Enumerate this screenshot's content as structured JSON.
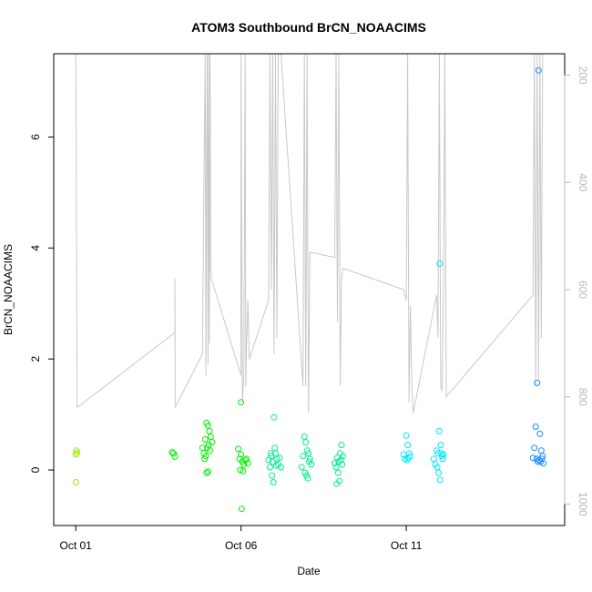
{
  "chart_data": {
    "type": "scatter",
    "title": "ATOM3 Southbound BrCN_NOAACIMS",
    "xlabel": "Date",
    "ylabel": "BrCN_NOAACIMS",
    "xlim": [
      "2017-09-30T08:00",
      "2017-10-15T19:00"
    ],
    "ylim": [
      -1.0,
      7.5
    ],
    "x_ticks": [
      {
        "value": "2017-10-01",
        "label": "Oct 01"
      },
      {
        "value": "2017-10-06",
        "label": "Oct 06"
      },
      {
        "value": "2017-10-11",
        "label": "Oct 11"
      }
    ],
    "y_ticks": [
      0,
      2,
      4,
      6
    ],
    "y2_ticks": [
      200,
      400,
      600,
      800,
      1000
    ],
    "y2_range_reversed": [
      160,
      1040
    ],
    "grid": false,
    "legend": "none",
    "point_colors": [
      "#9ee800",
      "#00ee00",
      "#00ee8a",
      "#00e6ff",
      "#1a8cff"
    ],
    "series": [
      {
        "type": "scatter",
        "points": [
          [
            "2017-10-01T00:00",
            0.28
          ],
          [
            "2017-10-01T00:30",
            0.35
          ],
          [
            "2017-10-01T01:00",
            0.31
          ],
          [
            "2017-10-01T00:10",
            -0.22
          ],
          [
            "2017-10-03T22:00",
            0.32
          ],
          [
            "2017-10-03T23:00",
            0.3
          ],
          [
            "2017-10-04T00:00",
            0.24
          ],
          [
            "2017-10-04T20:00",
            0.4
          ],
          [
            "2017-10-04T21:00",
            0.3
          ],
          [
            "2017-10-04T22:00",
            0.55
          ],
          [
            "2017-10-04T23:00",
            0.85
          ],
          [
            "2017-10-05T00:00",
            0.8
          ],
          [
            "2017-10-05T01:00",
            0.7
          ],
          [
            "2017-10-05T02:00",
            0.6
          ],
          [
            "2017-10-05T03:00",
            0.5
          ],
          [
            "2017-10-04T21:30",
            0.2
          ],
          [
            "2017-10-04T22:30",
            0.25
          ],
          [
            "2017-10-04T23:30",
            0.4
          ],
          [
            "2017-10-05T00:30",
            0.45
          ],
          [
            "2017-10-04T23:00",
            -0.05
          ],
          [
            "2017-10-05T00:00",
            -0.03
          ],
          [
            "2017-10-05T01:30",
            0.35
          ],
          [
            "2017-10-06T00:00",
            1.22
          ],
          [
            "2017-10-06T00:30",
            -0.7
          ],
          [
            "2017-10-05T22:00",
            0.38
          ],
          [
            "2017-10-05T23:00",
            0.2
          ],
          [
            "2017-10-06T01:00",
            0.15
          ],
          [
            "2017-10-06T02:00",
            0.1
          ],
          [
            "2017-10-06T03:00",
            0.18
          ],
          [
            "2017-10-05T23:30",
            0.0
          ],
          [
            "2017-10-06T00:00",
            0.28
          ],
          [
            "2017-10-06T04:00",
            0.2
          ],
          [
            "2017-10-06T01:30",
            -0.02
          ],
          [
            "2017-10-06T05:00",
            0.12
          ],
          [
            "2017-10-06T22:00",
            0.25
          ],
          [
            "2017-10-06T23:00",
            0.15
          ],
          [
            "2017-10-07T00:00",
            0.95
          ],
          [
            "2017-10-07T01:00",
            0.3
          ],
          [
            "2017-10-07T02:00",
            0.2
          ],
          [
            "2017-10-07T03:00",
            0.1
          ],
          [
            "2017-10-06T21:00",
            0.05
          ],
          [
            "2017-10-06T22:30",
            -0.1
          ],
          [
            "2017-10-06T23:30",
            -0.22
          ],
          [
            "2017-10-07T04:00",
            0.22
          ],
          [
            "2017-10-07T05:00",
            0.05
          ],
          [
            "2017-10-06T20:00",
            0.18
          ],
          [
            "2017-10-07T00:30",
            0.4
          ],
          [
            "2017-10-07T01:30",
            0.08
          ],
          [
            "2017-10-06T21:30",
            0.3
          ],
          [
            "2017-10-07T22:00",
            0.6
          ],
          [
            "2017-10-07T23:00",
            0.5
          ],
          [
            "2017-10-08T00:00",
            0.35
          ],
          [
            "2017-10-08T01:00",
            0.3
          ],
          [
            "2017-10-08T02:00",
            0.2
          ],
          [
            "2017-10-08T03:00",
            0.1
          ],
          [
            "2017-10-07T21:00",
            0.25
          ],
          [
            "2017-10-07T22:30",
            -0.05
          ],
          [
            "2017-10-08T00:30",
            -0.15
          ],
          [
            "2017-10-07T23:30",
            -0.1
          ],
          [
            "2017-10-08T01:30",
            0.15
          ],
          [
            "2017-10-07T20:00",
            0.05
          ],
          [
            "2017-10-08T22:00",
            0.22
          ],
          [
            "2017-10-08T23:00",
            0.15
          ],
          [
            "2017-10-09T00:00",
            0.3
          ],
          [
            "2017-10-09T01:00",
            0.45
          ],
          [
            "2017-10-08T21:00",
            0.05
          ],
          [
            "2017-10-08T22:30",
            -0.05
          ],
          [
            "2017-10-08T23:30",
            -0.2
          ],
          [
            "2017-10-08T21:30",
            -0.25
          ],
          [
            "2017-10-09T00:30",
            0.18
          ],
          [
            "2017-10-09T01:30",
            0.1
          ],
          [
            "2017-10-08T20:00",
            0.12
          ],
          [
            "2017-10-09T02:00",
            0.25
          ],
          [
            "2017-10-11T00:00",
            0.62
          ],
          [
            "2017-10-11T01:00",
            0.45
          ],
          [
            "2017-10-11T02:00",
            0.3
          ],
          [
            "2017-10-11T03:00",
            0.25
          ],
          [
            "2017-10-10T23:00",
            0.2
          ],
          [
            "2017-10-11T00:30",
            0.18
          ],
          [
            "2017-10-11T01:30",
            0.22
          ],
          [
            "2017-10-10T22:00",
            0.28
          ],
          [
            "2017-10-11T22:00",
            0.35
          ],
          [
            "2017-10-11T23:00",
            0.3
          ],
          [
            "2017-10-12T00:00",
            0.7
          ],
          [
            "2017-10-12T01:00",
            0.45
          ],
          [
            "2017-10-12T02:00",
            0.25
          ],
          [
            "2017-10-11T21:00",
            0.1
          ],
          [
            "2017-10-11T22:30",
            0.05
          ],
          [
            "2017-10-11T23:30",
            -0.05
          ],
          [
            "2017-10-12T00:30",
            -0.18
          ],
          [
            "2017-10-12T01:30",
            0.3
          ],
          [
            "2017-10-11T20:00",
            0.2
          ],
          [
            "2017-10-12T00:15",
            3.72
          ],
          [
            "2017-10-12T02:30",
            0.2
          ],
          [
            "2017-10-12T03:00",
            0.28
          ],
          [
            "2017-10-14T22:00",
            0.78
          ],
          [
            "2017-10-14T23:00",
            1.57
          ],
          [
            "2017-10-15T00:00",
            7.2
          ],
          [
            "2017-10-15T01:00",
            0.65
          ],
          [
            "2017-10-15T02:00",
            0.35
          ],
          [
            "2017-10-15T03:00",
            0.25
          ],
          [
            "2017-10-14T21:00",
            0.4
          ],
          [
            "2017-10-14T22:30",
            0.2
          ],
          [
            "2017-10-14T23:30",
            0.15
          ],
          [
            "2017-10-15T00:30",
            0.18
          ],
          [
            "2017-10-15T01:30",
            0.15
          ],
          [
            "2017-10-14T20:00",
            0.22
          ],
          [
            "2017-10-15T02:30",
            0.2
          ],
          [
            "2017-10-15T03:30",
            0.12
          ]
        ]
      },
      {
        "type": "line",
        "axis": "y2",
        "points": [
          [
            "2017-10-01T00:00",
            160
          ],
          [
            "2017-10-01T01:00",
            820
          ],
          [
            "2017-10-04T00:00",
            680
          ],
          [
            "2017-10-04T00:00",
            580
          ],
          [
            "2017-10-04T00:10",
            820
          ],
          [
            "2017-10-04T20:00",
            720
          ],
          [
            "2017-10-04T21:00",
            420
          ],
          [
            "2017-10-04T22:00",
            160
          ],
          [
            "2017-10-04T22:30",
            760
          ],
          [
            "2017-10-04T23:00",
            400
          ],
          [
            "2017-10-04T23:30",
            160
          ],
          [
            "2017-10-05T00:00",
            740
          ],
          [
            "2017-10-05T00:30",
            160
          ],
          [
            "2017-10-05T01:00",
            700
          ],
          [
            "2017-10-05T01:30",
            160
          ],
          [
            "2017-10-05T02:00",
            560
          ],
          [
            "2017-10-05T02:30",
            580
          ],
          [
            "2017-10-06T00:00",
            760
          ],
          [
            "2017-10-06T00:00",
            160
          ],
          [
            "2017-10-06T01:00",
            810
          ],
          [
            "2017-10-06T02:00",
            760
          ],
          [
            "2017-10-06T03:00",
            160
          ],
          [
            "2017-10-06T03:30",
            780
          ],
          [
            "2017-10-06T04:00",
            700
          ],
          [
            "2017-10-06T05:00",
            620
          ],
          [
            "2017-10-06T06:00",
            730
          ],
          [
            "2017-10-06T20:00",
            620
          ],
          [
            "2017-10-06T21:00",
            160
          ],
          [
            "2017-10-06T22:00",
            600
          ],
          [
            "2017-10-06T23:00",
            160
          ],
          [
            "2017-10-07T00:00",
            720
          ],
          [
            "2017-10-07T01:00",
            160
          ],
          [
            "2017-10-07T02:00",
            690
          ],
          [
            "2017-10-07T03:00",
            160
          ],
          [
            "2017-10-07T04:00",
            160
          ],
          [
            "2017-10-07T05:00",
            160
          ],
          [
            "2017-10-07T21:00",
            780
          ],
          [
            "2017-10-07T22:00",
            160
          ],
          [
            "2017-10-07T23:00",
            780
          ],
          [
            "2017-10-08T00:00",
            160
          ],
          [
            "2017-10-08T01:00",
            830
          ],
          [
            "2017-10-08T02:00",
            530
          ],
          [
            "2017-10-08T20:00",
            540
          ],
          [
            "2017-10-08T21:00",
            160
          ],
          [
            "2017-10-08T22:00",
            660
          ],
          [
            "2017-10-08T23:00",
            160
          ],
          [
            "2017-10-09T00:00",
            780
          ],
          [
            "2017-10-09T01:00",
            580
          ],
          [
            "2017-10-09T02:00",
            560
          ],
          [
            "2017-10-10T22:00",
            600
          ],
          [
            "2017-10-11T00:00",
            620
          ],
          [
            "2017-10-11T01:00",
            160
          ],
          [
            "2017-10-11T02:00",
            810
          ],
          [
            "2017-10-11T03:00",
            630
          ],
          [
            "2017-10-11T04:00",
            780
          ],
          [
            "2017-10-11T05:00",
            830
          ],
          [
            "2017-10-11T22:00",
            610
          ],
          [
            "2017-10-11T23:00",
            690
          ],
          [
            "2017-10-12T00:00",
            160
          ],
          [
            "2017-10-12T01:00",
            780
          ],
          [
            "2017-10-12T02:00",
            790
          ],
          [
            "2017-10-12T03:00",
            600
          ],
          [
            "2017-10-12T04:00",
            160
          ],
          [
            "2017-10-12T05:00",
            800
          ],
          [
            "2017-10-14T20:00",
            610
          ],
          [
            "2017-10-14T21:00",
            160
          ],
          [
            "2017-10-14T22:00",
            780
          ],
          [
            "2017-10-14T23:00",
            160
          ],
          [
            "2017-10-15T00:00",
            770
          ],
          [
            "2017-10-15T01:00",
            160
          ],
          [
            "2017-10-15T02:00",
            690
          ],
          [
            "2017-10-15T03:00",
            160
          ]
        ]
      }
    ]
  }
}
